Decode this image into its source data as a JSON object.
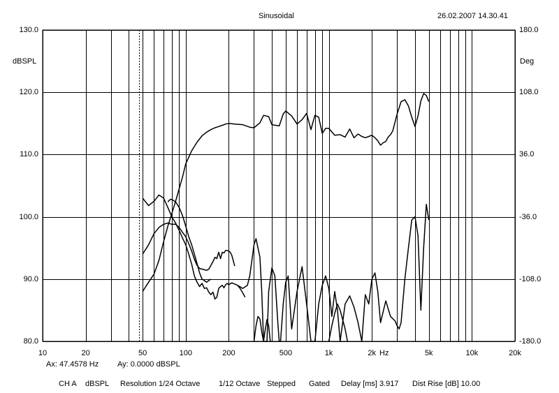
{
  "header": {
    "title": "Sinusoidal",
    "timestamp": "26.02.2007 14.30.41"
  },
  "cursor_readout": {
    "ax": "Ax: 47.4578 Hz",
    "ay": "Ay: 0.0000 dBSPL"
  },
  "footer": {
    "channel": "CH A",
    "unit": "dBSPL",
    "resolution": "Resolution 1/24 Octave",
    "smoothing": "1/12 Octave",
    "mode": "Stepped",
    "gating": "Gated",
    "delay": "Delay [ms] 3.917",
    "dist_rise": "Dist Rise [dB] 10.00"
  },
  "chart_data": {
    "type": "line",
    "title": "Sinusoidal",
    "xlabel": "Hz",
    "ylabel": "dBSPL",
    "y2label": "Deg",
    "xscale": "log",
    "xlim": [
      10,
      20000
    ],
    "ylim": [
      80,
      130
    ],
    "y2lim": [
      -180,
      180
    ],
    "grid": true,
    "legend": "none",
    "cursor_x": 47.4578,
    "x_ticks": [
      {
        "value": 10,
        "label": "10"
      },
      {
        "value": 20,
        "label": "20"
      },
      {
        "value": 50,
        "label": "50"
      },
      {
        "value": 100,
        "label": "100"
      },
      {
        "value": 200,
        "label": "200"
      },
      {
        "value": 500,
        "label": "500"
      },
      {
        "value": 1000,
        "label": "1k"
      },
      {
        "value": 2000,
        "label": "2k"
      },
      {
        "value": 5000,
        "label": "5k"
      },
      {
        "value": 10000,
        "label": "10k"
      },
      {
        "value": 20000,
        "label": "20k"
      }
    ],
    "y_ticks": [
      "80.0",
      "90.0",
      "100.0",
      "110.0",
      "120.0",
      "130.0"
    ],
    "y2_ticks": [
      "-180.0",
      "-108.0",
      "-36.0",
      "36.0",
      "108.0",
      "180.0"
    ],
    "series": [
      {
        "x": [
          50,
          55,
          60,
          65,
          70,
          75,
          80,
          85,
          90,
          95,
          100,
          110,
          120,
          130,
          140,
          150,
          160,
          170,
          180,
          190,
          200,
          220,
          250,
          280,
          300,
          330,
          350,
          380,
          400,
          450,
          480,
          500,
          550,
          600,
          650,
          700,
          750,
          800,
          850,
          900,
          950,
          1000,
          1100,
          1200,
          1300,
          1400,
          1500,
          1600,
          1700,
          1800,
          1900,
          2000,
          2100,
          2200,
          2300,
          2400,
          2500,
          2600,
          2700,
          2800,
          3000,
          3200,
          3400,
          3600,
          3800,
          4000,
          4200,
          4400,
          4600,
          4800,
          5000
        ],
        "y": [
          88,
          89.5,
          90.8,
          93,
          96,
          98.5,
          100.5,
          102.5,
          104.5,
          106.4,
          108.5,
          110.6,
          112,
          113,
          113.6,
          114,
          114.3,
          114.5,
          114.7,
          114.9,
          115,
          114.9,
          114.8,
          114.4,
          114.3,
          115.1,
          116.3,
          116.1,
          114.8,
          114.6,
          116.5,
          117,
          116.2,
          114.9,
          115.6,
          116.6,
          114,
          116.3,
          116,
          113.4,
          114.2,
          114.2,
          113.1,
          113.2,
          112.8,
          114.1,
          112.7,
          113.3,
          112.9,
          112.7,
          112.9,
          113.1,
          112.7,
          112.2,
          111.5,
          111.9,
          112.1,
          112.8,
          113.2,
          113.8,
          116.5,
          118.5,
          118.8,
          117.8,
          116,
          114.5,
          116.2,
          118.6,
          119.8,
          119.5,
          118.5
        ]
      },
      {
        "x": [
          50,
          55,
          60,
          65,
          70,
          75,
          80,
          85,
          90,
          95,
          100,
          105,
          110,
          115,
          120,
          125,
          130,
          135,
          140,
          145,
          150,
          155,
          160,
          165,
          170,
          175,
          180,
          185,
          190,
          195,
          200,
          210,
          220,
          230,
          240,
          250,
          260
        ],
        "y": [
          103,
          101.8,
          102.5,
          103.5,
          103,
          101.5,
          100,
          99,
          97.8,
          96.6,
          95.5,
          94,
          92.4,
          90.5,
          89.5,
          88.8,
          89.3,
          88.5,
          88.6,
          87.9,
          87.5,
          87.9,
          86.8,
          87.1,
          88.5,
          88.8,
          89,
          88.6,
          89.1,
          89.3,
          89.1,
          89.4,
          89.2,
          89,
          88.5,
          87.8,
          87.1
        ]
      },
      {
        "x": [
          50,
          55,
          60,
          65,
          70,
          75,
          80,
          85,
          90,
          95,
          100,
          105,
          110,
          115,
          120,
          125,
          130,
          135,
          140,
          145,
          150,
          155,
          160,
          165,
          170,
          175,
          180,
          185,
          190,
          195,
          200,
          205,
          210,
          220
        ],
        "y": [
          94,
          95.5,
          97.3,
          98.3,
          98.8,
          99,
          98.8,
          98.8,
          98.3,
          97.5,
          96.8,
          95.7,
          94.5,
          93.2,
          92.2,
          91.7,
          91.6,
          91.5,
          91.4,
          91.6,
          92.2,
          92.8,
          93.5,
          93.3,
          94.3,
          93.3,
          94.3,
          94.2,
          94.6,
          94.6,
          94.5,
          94.3,
          93.8,
          92.1
        ]
      },
      {
        "x": [
          75,
          78,
          80,
          85,
          90,
          95,
          100,
          105,
          110,
          115,
          120,
          125,
          130,
          140,
          150
        ],
        "y": [
          102.4,
          102.8,
          102.8,
          102.4,
          101.5,
          100.2,
          98.5,
          96.8,
          95.5,
          94,
          92.5,
          91,
          90,
          89.5,
          90
        ]
      },
      {
        "x": [
          230,
          250,
          270,
          280,
          290,
          300,
          310,
          330,
          340,
          350,
          370,
          380,
          400,
          420,
          440,
          450,
          460,
          480,
          500,
          520,
          550,
          600,
          650,
          700,
          750,
          800,
          850,
          900,
          950,
          1000,
          1050,
          1100,
          1150,
          1200,
          1300,
          1400,
          1500,
          1600,
          1700,
          1800,
          1900,
          2000,
          2100,
          2200,
          2300,
          2500,
          2700,
          2900,
          3000,
          3100,
          3200,
          3400,
          3600,
          3800,
          4000,
          4200,
          4400,
          4600,
          4800,
          5000
        ],
        "y": [
          89,
          88.5,
          89,
          90.5,
          93,
          95.5,
          96.5,
          93.5,
          88,
          80,
          80,
          88,
          91.8,
          90.5,
          83,
          80,
          80,
          86,
          89.5,
          90.5,
          82,
          88,
          92,
          86,
          80,
          80,
          86,
          89,
          90.5,
          88.5,
          84,
          88,
          85,
          80,
          86,
          87.3,
          85.5,
          83,
          80,
          87.5,
          86,
          90,
          91,
          88,
          83,
          86.5,
          84,
          83.3,
          82.5,
          82,
          83,
          90,
          95,
          99.5,
          100,
          97,
          85,
          95,
          102,
          99.5
        ]
      },
      {
        "x": [
          300,
          310,
          320,
          330,
          340,
          350,
          360,
          370,
          380,
          390
        ],
        "y": [
          80,
          82.5,
          84,
          83.6,
          81.5,
          80,
          82,
          83.5,
          82.5,
          80
        ]
      },
      {
        "x": [
          1000,
          1050,
          1100,
          1150,
          1200,
          1250,
          1300,
          1350
        ],
        "y": [
          80,
          82.5,
          84.5,
          86,
          85,
          83.5,
          82,
          80
        ]
      }
    ]
  }
}
